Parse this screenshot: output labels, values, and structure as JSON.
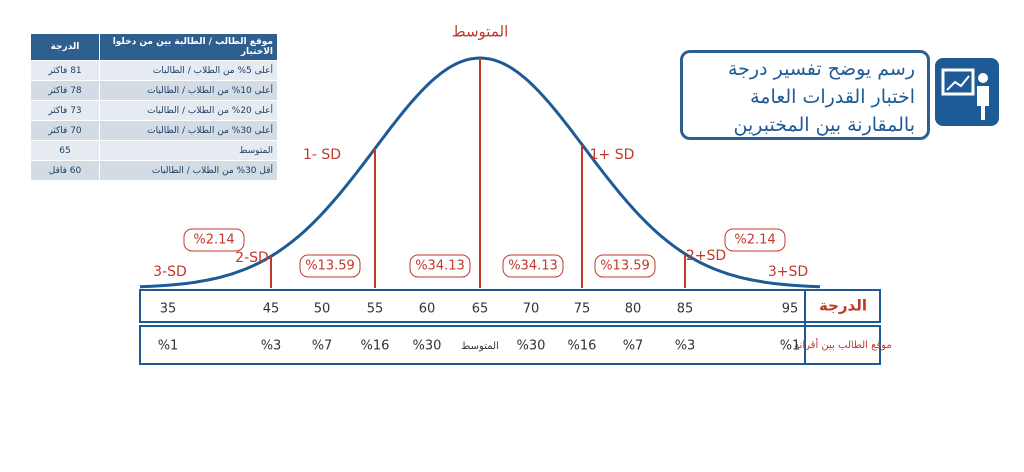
{
  "title": {
    "lines": [
      "رسم يوضح تفسير درجة",
      "اختبار القدرات العامة",
      "بالمقارنة بين المختبرين"
    ]
  },
  "table": {
    "header": [
      "موقع الطالب / الطالبة بين من دخلوا الاختبار",
      "الدرجة"
    ],
    "rows": [
      [
        "أعلى 5% من الطلاب / الطالبات",
        "81 فاكثر"
      ],
      [
        "أعلى 10% من الطلاب / الطالبات",
        "78 فاكثر"
      ],
      [
        "أعلى 20% من الطلاب / الطالبات",
        "73 فاكثر"
      ],
      [
        "أعلى 30% من الطلاب / الطالبات",
        "70 فاكثر"
      ],
      [
        "المتوسط",
        "65"
      ],
      [
        "أقل 30% من الطلاب / الطالبات",
        "60 فاقل"
      ]
    ]
  },
  "curve": {
    "mean_label": "المتوسط",
    "sd_labels": [
      "3-SD",
      "2-SD",
      "1- SD",
      "1+ SD",
      "2+SD",
      "3+SD"
    ],
    "area_labels": [
      "%2.14",
      "%13.59",
      "%34.13",
      "%34.13",
      "%13.59",
      "%2.14"
    ]
  },
  "scale": {
    "score_label": "الدرجة",
    "scores": [
      "35",
      "45",
      "50",
      "55",
      "60",
      "65",
      "70",
      "75",
      "80",
      "85",
      "95"
    ],
    "rank_label": "موقع الطالب بين أقرانه",
    "ranks": [
      "%1",
      "%3",
      "%7",
      "%16",
      "%30",
      "المتوسط",
      "%30",
      "%16",
      "%7",
      "%3",
      "%1"
    ]
  }
}
